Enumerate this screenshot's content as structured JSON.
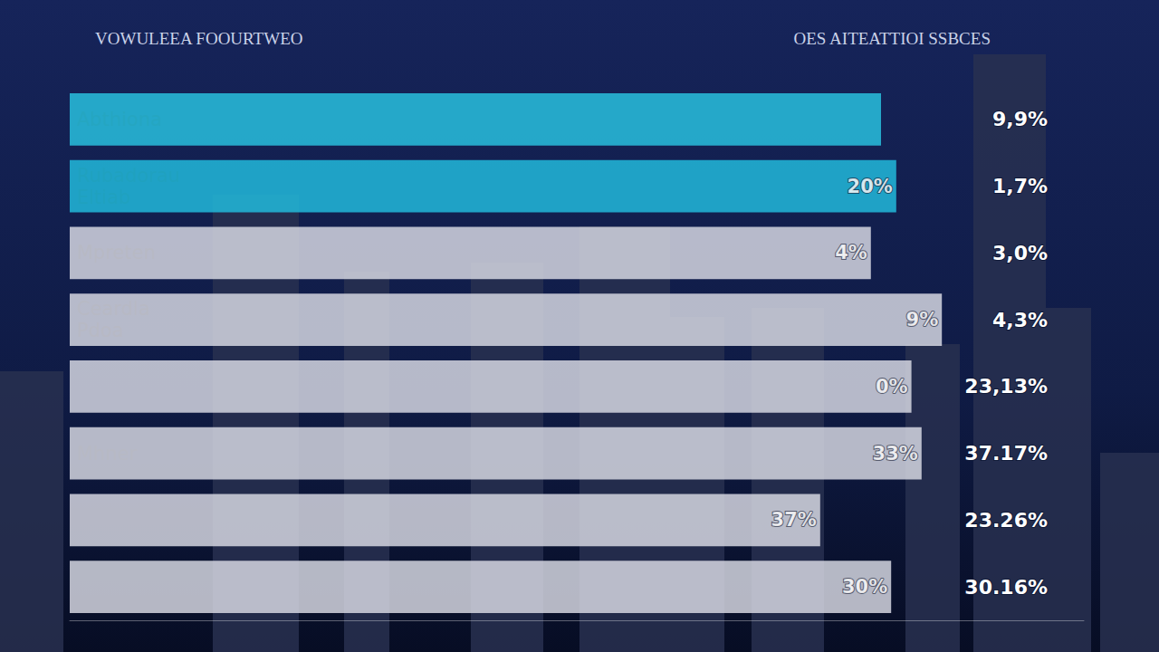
{
  "chart_data": {
    "type": "bar",
    "orientation": "horizontal",
    "title": "VOWULEEA FOOURTWEO",
    "subtitle": "OES AITEATTIOI SSBCES",
    "categories": [
      "Abthiona",
      "Rubadorau\nEltiab",
      "Mpreten",
      "Ceardla\nPdoa",
      null,
      "Mhner",
      null,
      null
    ],
    "values": [
      80,
      81.5,
      79,
      86,
      83,
      84,
      74,
      81
    ],
    "colors": [
      "#29c6e3",
      "#22bfe0",
      "#dcdde6",
      "#dcdde6",
      "#dcdde6",
      "#dcdde6",
      "#dcdde6",
      "#dcdde6"
    ],
    "xlim": [
      0,
      100
    ],
    "tick_labels": false,
    "grid": false,
    "annotations": {
      "inner": [
        null,
        "20%",
        "4%",
        "9%",
        "0%",
        "33%",
        "37%",
        "30%"
      ],
      "right": [
        "9,9%",
        "1,7%",
        "3,0%",
        "4,3%",
        "23,13%",
        "37.17%",
        "23.26%",
        "30.16%"
      ]
    }
  }
}
